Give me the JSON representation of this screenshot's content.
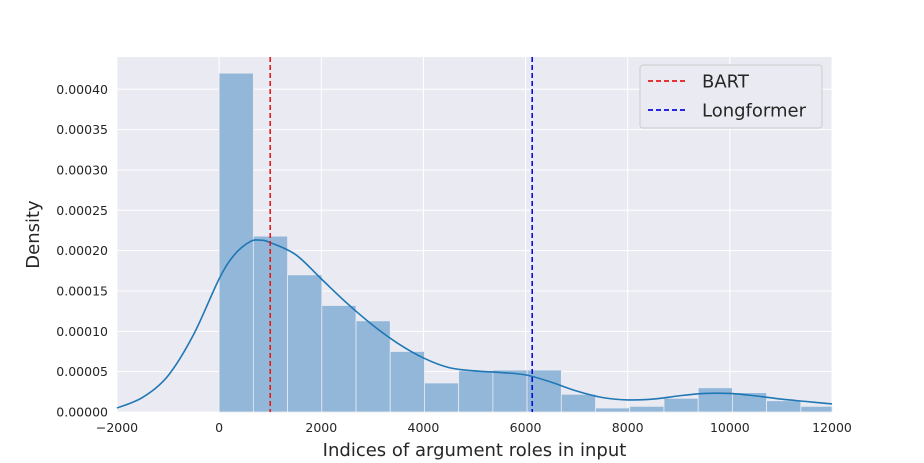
{
  "chart_data": {
    "type": "bar",
    "title": "",
    "xlabel": "Indices of argument roles in input",
    "ylabel": "Density",
    "xlim": [
      -2000,
      12000
    ],
    "ylim": [
      0,
      0.00044
    ],
    "grid": true,
    "x_ticks": [
      -2000,
      0,
      2000,
      4000,
      6000,
      8000,
      10000,
      12000
    ],
    "x_tick_labels": [
      "−2000",
      "0",
      "2000",
      "4000",
      "6000",
      "8000",
      "10000",
      "12000"
    ],
    "y_ticks": [
      0,
      5e-05,
      0.0001,
      0.00015,
      0.0002,
      0.00025,
      0.0003,
      0.00035,
      0.0004
    ],
    "y_tick_labels": [
      "0.00000",
      "0.00005",
      "0.00010",
      "0.00015",
      "0.00020",
      "0.00025",
      "0.00030",
      "0.00035",
      "0.00040"
    ],
    "histogram": {
      "bin_edges": [
        0,
        670,
        1340,
        2010,
        2680,
        3350,
        4020,
        4690,
        5360,
        6030,
        6700,
        7370,
        8040,
        8710,
        9380,
        10050,
        10720,
        11390,
        12060
      ],
      "densities": [
        0.00042,
        0.000218,
        0.00017,
        0.000132,
        0.000113,
        7.5e-05,
        3.6e-05,
        5.1e-05,
        5.2e-05,
        5.2e-05,
        2.2e-05,
        5e-06,
        7e-06,
        1.7e-05,
        3e-05,
        2.4e-05,
        1.4e-05,
        7e-06
      ],
      "color": "#92b7d9"
    },
    "kde": {
      "x": [
        -2000,
        -1500,
        -1000,
        -500,
        0,
        300,
        600,
        800,
        1000,
        1500,
        2000,
        2500,
        3000,
        3500,
        4000,
        4500,
        5000,
        5500,
        6000,
        6500,
        7000,
        7500,
        8000,
        8500,
        9000,
        9500,
        10000,
        10500,
        11000,
        11500,
        12000
      ],
      "y": [
        5e-06,
        1.8e-05,
        4.5e-05,
        9.6e-05,
        0.000165,
        0.000195,
        0.000211,
        0.000213,
        0.00021,
        0.000195,
        0.000165,
        0.000135,
        0.000108,
        8.5e-05,
        6.7e-05,
        5.5e-05,
        5.1e-05,
        4.9e-05,
        4.6e-05,
        3.7e-05,
        2.6e-05,
        1.8e-05,
        1.5e-05,
        1.6e-05,
        2e-05,
        2.3e-05,
        2.3e-05,
        2e-05,
        1.6e-05,
        1.3e-05,
        1e-05
      ],
      "color": "#1f77b4"
    },
    "reference_lines": [
      {
        "name": "BART",
        "x": 1000,
        "color": "#e41a1c"
      },
      {
        "name": "Longformer",
        "x": 6130,
        "color": "#0a0adc"
      }
    ],
    "legend": {
      "position": "top-right",
      "entries": [
        "BART",
        "Longformer"
      ]
    }
  }
}
